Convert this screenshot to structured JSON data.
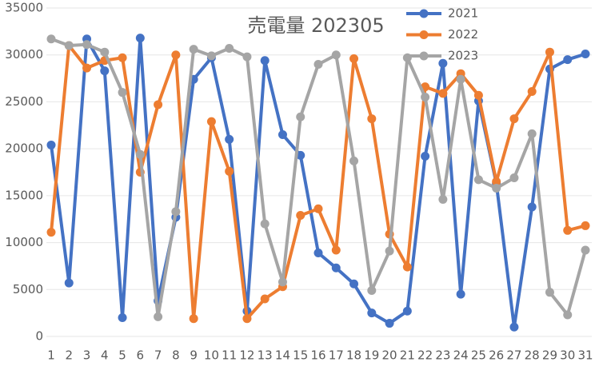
{
  "chart_data": {
    "type": "line",
    "title": "売電量 202305",
    "categories": [
      "1",
      "2",
      "3",
      "4",
      "5",
      "6",
      "7",
      "8",
      "9",
      "10",
      "11",
      "12",
      "13",
      "14",
      "15",
      "16",
      "17",
      "18",
      "19",
      "20",
      "21",
      "22",
      "23",
      "24",
      "25",
      "26",
      "27",
      "28",
      "29",
      "30",
      "31"
    ],
    "series": [
      {
        "name": "2021",
        "color": "#4472c4",
        "values": [
          20400,
          5700,
          31700,
          28300,
          2000,
          31800,
          3800,
          12700,
          27400,
          29700,
          21000,
          2700,
          29400,
          21500,
          19300,
          8900,
          7300,
          5600,
          2500,
          1400,
          2700,
          19200,
          29100,
          4500,
          25100,
          16300,
          1000,
          13800,
          28500,
          29500,
          30100
        ]
      },
      {
        "name": "2022",
        "color": "#ed7d31",
        "values": [
          11100,
          31000,
          28600,
          29400,
          29700,
          17500,
          24700,
          30000,
          1900,
          22900,
          17600,
          1900,
          4000,
          5300,
          12900,
          13600,
          9200,
          29600,
          23200,
          10900,
          7400,
          26600,
          25900,
          28000,
          25700,
          16500,
          23200,
          26100,
          30300,
          11300,
          11800
        ]
      },
      {
        "name": "2023",
        "color": "#a5a5a5",
        "values": [
          31700,
          31000,
          31100,
          30300,
          26000,
          19400,
          2100,
          13300,
          30600,
          29900,
          30700,
          29800,
          12000,
          5800,
          23400,
          29000,
          30000,
          18700,
          4900,
          9100,
          29700,
          25500,
          14600,
          27400,
          16700,
          15800,
          16900,
          21600,
          4700,
          2300,
          9200
        ]
      }
    ],
    "ylim": [
      0,
      35000
    ],
    "yticks": [
      0,
      5000,
      10000,
      15000,
      20000,
      25000,
      30000,
      35000
    ],
    "grid": true,
    "legend": "top-right"
  }
}
